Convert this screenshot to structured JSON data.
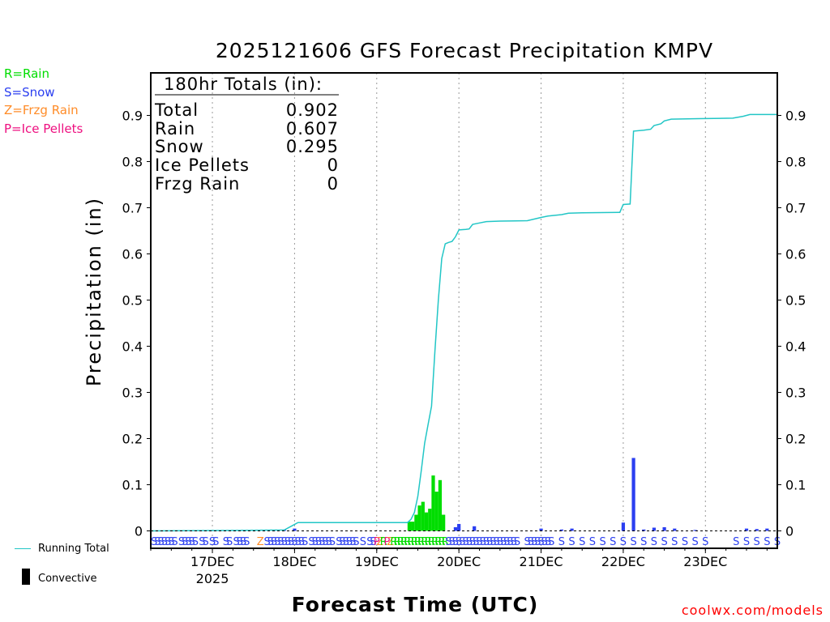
{
  "chart_data": {
    "type": "bar",
    "title": "2025121606 GFS Forecast Precipitation KMPV",
    "ylabel": "Precipitation (in)",
    "xlabel": "Forecast Time (UTC)",
    "ylim": [
      0,
      1.0
    ],
    "yticks": [
      "0",
      "0.1",
      "0.2",
      "0.3",
      "0.4",
      "0.5",
      "0.6",
      "0.7",
      "0.8",
      "0.9"
    ],
    "y_tick_values": [
      0,
      0.1,
      0.2,
      0.3,
      0.4,
      0.5,
      0.6,
      0.7,
      0.8,
      0.9
    ],
    "x_range_hours": [
      0,
      183
    ],
    "xticks": [
      {
        "hour": 18,
        "label": "17DEC",
        "sub": "2025"
      },
      {
        "hour": 42,
        "label": "18DEC",
        "sub": ""
      },
      {
        "hour": 66,
        "label": "19DEC",
        "sub": ""
      },
      {
        "hour": 90,
        "label": "20DEC",
        "sub": ""
      },
      {
        "hour": 114,
        "label": "21DEC",
        "sub": ""
      },
      {
        "hour": 138,
        "label": "22DEC",
        "sub": ""
      },
      {
        "hour": 162,
        "label": "23DEC",
        "sub": ""
      }
    ],
    "totals": {
      "header": "180hr Totals (in):",
      "rows": [
        {
          "label": "Total",
          "value": "0.902"
        },
        {
          "label": "Rain",
          "value": "0.607"
        },
        {
          "label": "Snow",
          "value": "0.295"
        },
        {
          "label": "Ice Pellets",
          "value": "0"
        },
        {
          "label": "Frzg Rain",
          "value": "0"
        }
      ]
    },
    "legend": [
      {
        "text": "R=Rain",
        "color": "#00dd00"
      },
      {
        "text": "S=Snow",
        "color": "#2b3ff0"
      },
      {
        "text": "Z=Frzg Rain",
        "color": "#ff8c28"
      },
      {
        "text": "P=Ice Pellets",
        "color": "#ee1080"
      }
    ],
    "series_legend": [
      {
        "name": "Running Total",
        "color": "#22c6c6"
      },
      {
        "name": "Convective",
        "color": "#000000"
      }
    ],
    "bars": [
      {
        "hour": 27,
        "value": 0.002,
        "type": "S"
      },
      {
        "hour": 30,
        "value": 0.002,
        "type": "S"
      },
      {
        "hour": 33,
        "value": 0.002,
        "type": "S"
      },
      {
        "hour": 36,
        "value": 0.002,
        "type": "S"
      },
      {
        "hour": 39,
        "value": 0.003,
        "type": "S"
      },
      {
        "hour": 42,
        "value": 0.005,
        "type": "S"
      },
      {
        "hour": 75.5,
        "value": 0.02,
        "type": "R"
      },
      {
        "hour": 76.5,
        "value": 0.02,
        "type": "R"
      },
      {
        "hour": 77.5,
        "value": 0.035,
        "type": "R"
      },
      {
        "hour": 78.5,
        "value": 0.055,
        "type": "R"
      },
      {
        "hour": 79.5,
        "value": 0.063,
        "type": "R"
      },
      {
        "hour": 80.5,
        "value": 0.04,
        "type": "R"
      },
      {
        "hour": 81.5,
        "value": 0.048,
        "type": "R"
      },
      {
        "hour": 82.5,
        "value": 0.12,
        "type": "R"
      },
      {
        "hour": 83.5,
        "value": 0.085,
        "type": "R"
      },
      {
        "hour": 84.5,
        "value": 0.11,
        "type": "R"
      },
      {
        "hour": 85.5,
        "value": 0.035,
        "type": "R"
      },
      {
        "hour": 89,
        "value": 0.008,
        "type": "S"
      },
      {
        "hour": 90,
        "value": 0.015,
        "type": "S"
      },
      {
        "hour": 94.5,
        "value": 0.01,
        "type": "S"
      },
      {
        "hour": 114,
        "value": 0.005,
        "type": "S"
      },
      {
        "hour": 120,
        "value": 0.003,
        "type": "S"
      },
      {
        "hour": 123,
        "value": 0.005,
        "type": "S"
      },
      {
        "hour": 138,
        "value": 0.018,
        "type": "S"
      },
      {
        "hour": 141,
        "value": 0.158,
        "type": "S"
      },
      {
        "hour": 144,
        "value": 0.003,
        "type": "S"
      },
      {
        "hour": 147,
        "value": 0.007,
        "type": "S"
      },
      {
        "hour": 150,
        "value": 0.008,
        "type": "S"
      },
      {
        "hour": 153,
        "value": 0.005,
        "type": "S"
      },
      {
        "hour": 159,
        "value": 0.002,
        "type": "S"
      },
      {
        "hour": 174,
        "value": 0.005,
        "type": "S"
      },
      {
        "hour": 177,
        "value": 0.004,
        "type": "S"
      },
      {
        "hour": 180,
        "value": 0.005,
        "type": "S"
      }
    ],
    "running_total": [
      [
        0,
        0
      ],
      [
        27,
        0.001
      ],
      [
        39,
        0.002
      ],
      [
        41,
        0.01
      ],
      [
        43,
        0.018
      ],
      [
        75,
        0.018
      ],
      [
        76,
        0.025
      ],
      [
        77,
        0.04
      ],
      [
        78,
        0.075
      ],
      [
        79,
        0.13
      ],
      [
        80,
        0.19
      ],
      [
        81,
        0.23
      ],
      [
        82,
        0.27
      ],
      [
        83,
        0.39
      ],
      [
        84,
        0.5
      ],
      [
        85,
        0.59
      ],
      [
        86,
        0.622
      ],
      [
        87,
        0.625
      ],
      [
        88,
        0.627
      ],
      [
        89,
        0.637
      ],
      [
        90,
        0.652
      ],
      [
        92,
        0.653
      ],
      [
        93,
        0.654
      ],
      [
        94,
        0.664
      ],
      [
        96,
        0.667
      ],
      [
        98,
        0.67
      ],
      [
        102,
        0.671
      ],
      [
        110,
        0.672
      ],
      [
        114,
        0.679
      ],
      [
        116,
        0.682
      ],
      [
        120,
        0.685
      ],
      [
        122,
        0.688
      ],
      [
        126,
        0.689
      ],
      [
        137,
        0.69
      ],
      [
        138,
        0.707
      ],
      [
        140,
        0.708
      ],
      [
        141,
        0.866
      ],
      [
        144,
        0.868
      ],
      [
        146,
        0.87
      ],
      [
        147,
        0.878
      ],
      [
        149,
        0.882
      ],
      [
        150,
        0.888
      ],
      [
        152,
        0.892
      ],
      [
        160,
        0.893
      ],
      [
        170,
        0.894
      ],
      [
        173,
        0.898
      ],
      [
        175,
        0.902
      ],
      [
        183,
        0.902
      ]
    ],
    "ptype_labels": [
      {
        "hour": 1,
        "char": "S"
      },
      {
        "hour": 2,
        "char": "S"
      },
      {
        "hour": 3,
        "char": "S"
      },
      {
        "hour": 4,
        "char": "S"
      },
      {
        "hour": 5,
        "char": "S"
      },
      {
        "hour": 6,
        "char": "S"
      },
      {
        "hour": 7,
        "char": "S"
      },
      {
        "hour": 9,
        "char": "S"
      },
      {
        "hour": 10,
        "char": "S"
      },
      {
        "hour": 11,
        "char": "S"
      },
      {
        "hour": 12,
        "char": "S"
      },
      {
        "hour": 13,
        "char": "S"
      },
      {
        "hour": 15,
        "char": "S"
      },
      {
        "hour": 16,
        "char": "S"
      },
      {
        "hour": 18,
        "char": "S"
      },
      {
        "hour": 19,
        "char": "S"
      },
      {
        "hour": 22,
        "char": "S"
      },
      {
        "hour": 23,
        "char": "S"
      },
      {
        "hour": 25,
        "char": "S"
      },
      {
        "hour": 26,
        "char": "S"
      },
      {
        "hour": 27,
        "char": "S"
      },
      {
        "hour": 28,
        "char": "S"
      },
      {
        "hour": 32,
        "char": "Z"
      },
      {
        "hour": 34,
        "char": "S"
      },
      {
        "hour": 35,
        "char": "S"
      },
      {
        "hour": 36,
        "char": "S"
      },
      {
        "hour": 37,
        "char": "S"
      },
      {
        "hour": 38,
        "char": "S"
      },
      {
        "hour": 39,
        "char": "S"
      },
      {
        "hour": 40,
        "char": "S"
      },
      {
        "hour": 41,
        "char": "S"
      },
      {
        "hour": 42,
        "char": "S"
      },
      {
        "hour": 43,
        "char": "S"
      },
      {
        "hour": 44,
        "char": "S"
      },
      {
        "hour": 45,
        "char": "S"
      },
      {
        "hour": 47,
        "char": "S"
      },
      {
        "hour": 48,
        "char": "S"
      },
      {
        "hour": 49,
        "char": "S"
      },
      {
        "hour": 50,
        "char": "S"
      },
      {
        "hour": 51,
        "char": "S"
      },
      {
        "hour": 52,
        "char": "S"
      },
      {
        "hour": 53,
        "char": "S"
      },
      {
        "hour": 55,
        "char": "S"
      },
      {
        "hour": 56,
        "char": "S"
      },
      {
        "hour": 57,
        "char": "S"
      },
      {
        "hour": 58,
        "char": "S"
      },
      {
        "hour": 59,
        "char": "S"
      },
      {
        "hour": 60,
        "char": "S"
      },
      {
        "hour": 62,
        "char": "S"
      },
      {
        "hour": 64,
        "char": "S"
      },
      {
        "hour": 65,
        "char": "S"
      },
      {
        "hour": 66,
        "char": "P"
      },
      {
        "hour": 67,
        "char": "Z"
      },
      {
        "hour": 68,
        "char": "R"
      },
      {
        "hour": 69,
        "char": "P"
      },
      {
        "hour": 70,
        "char": "Z"
      },
      {
        "hour": 71,
        "char": "R"
      },
      {
        "hour": 72,
        "char": "R"
      },
      {
        "hour": 73,
        "char": "R"
      },
      {
        "hour": 74,
        "char": "R"
      },
      {
        "hour": 75,
        "char": "R"
      },
      {
        "hour": 76,
        "char": "R"
      },
      {
        "hour": 77,
        "char": "R"
      },
      {
        "hour": 78,
        "char": "R"
      },
      {
        "hour": 79,
        "char": "R"
      },
      {
        "hour": 80,
        "char": "R"
      },
      {
        "hour": 81,
        "char": "R"
      },
      {
        "hour": 82,
        "char": "R"
      },
      {
        "hour": 83,
        "char": "R"
      },
      {
        "hour": 84,
        "char": "R"
      },
      {
        "hour": 85,
        "char": "R"
      },
      {
        "hour": 86,
        "char": "R"
      },
      {
        "hour": 87,
        "char": "S"
      },
      {
        "hour": 88,
        "char": "S"
      },
      {
        "hour": 89,
        "char": "S"
      },
      {
        "hour": 90,
        "char": "S"
      },
      {
        "hour": 91,
        "char": "S"
      },
      {
        "hour": 92,
        "char": "S"
      },
      {
        "hour": 93,
        "char": "S"
      },
      {
        "hour": 94,
        "char": "S"
      },
      {
        "hour": 95,
        "char": "S"
      },
      {
        "hour": 96,
        "char": "S"
      },
      {
        "hour": 97,
        "char": "S"
      },
      {
        "hour": 98,
        "char": "S"
      },
      {
        "hour": 99,
        "char": "S"
      },
      {
        "hour": 100,
        "char": "S"
      },
      {
        "hour": 101,
        "char": "S"
      },
      {
        "hour": 102,
        "char": "S"
      },
      {
        "hour": 103,
        "char": "S"
      },
      {
        "hour": 104,
        "char": "S"
      },
      {
        "hour": 105,
        "char": "S"
      },
      {
        "hour": 106,
        "char": "S"
      },
      {
        "hour": 107,
        "char": "S"
      },
      {
        "hour": 110,
        "char": "S"
      },
      {
        "hour": 111,
        "char": "S"
      },
      {
        "hour": 112,
        "char": "S"
      },
      {
        "hour": 113,
        "char": "S"
      },
      {
        "hour": 114,
        "char": "S"
      },
      {
        "hour": 115,
        "char": "S"
      },
      {
        "hour": 116,
        "char": "S"
      },
      {
        "hour": 117,
        "char": "S"
      },
      {
        "hour": 120,
        "char": "S"
      },
      {
        "hour": 123,
        "char": "S"
      },
      {
        "hour": 126,
        "char": "S"
      },
      {
        "hour": 129,
        "char": "S"
      },
      {
        "hour": 132,
        "char": "S"
      },
      {
        "hour": 135,
        "char": "S"
      },
      {
        "hour": 138,
        "char": "S"
      },
      {
        "hour": 141,
        "char": "S"
      },
      {
        "hour": 144,
        "char": "S"
      },
      {
        "hour": 147,
        "char": "S"
      },
      {
        "hour": 150,
        "char": "S"
      },
      {
        "hour": 153,
        "char": "S"
      },
      {
        "hour": 156,
        "char": "S"
      },
      {
        "hour": 159,
        "char": "S"
      },
      {
        "hour": 162,
        "char": "S"
      },
      {
        "hour": 171,
        "char": "S"
      },
      {
        "hour": 174,
        "char": "S"
      },
      {
        "hour": 177,
        "char": "S"
      },
      {
        "hour": 180,
        "char": "S"
      },
      {
        "hour": 183,
        "char": "S"
      }
    ],
    "type_colors": {
      "R": "#00dd00",
      "S": "#2b3ff0",
      "Z": "#ff8c28",
      "P": "#ee1080"
    },
    "running_total_color": "#22c6c6"
  },
  "credit": "coolwx.com/models"
}
